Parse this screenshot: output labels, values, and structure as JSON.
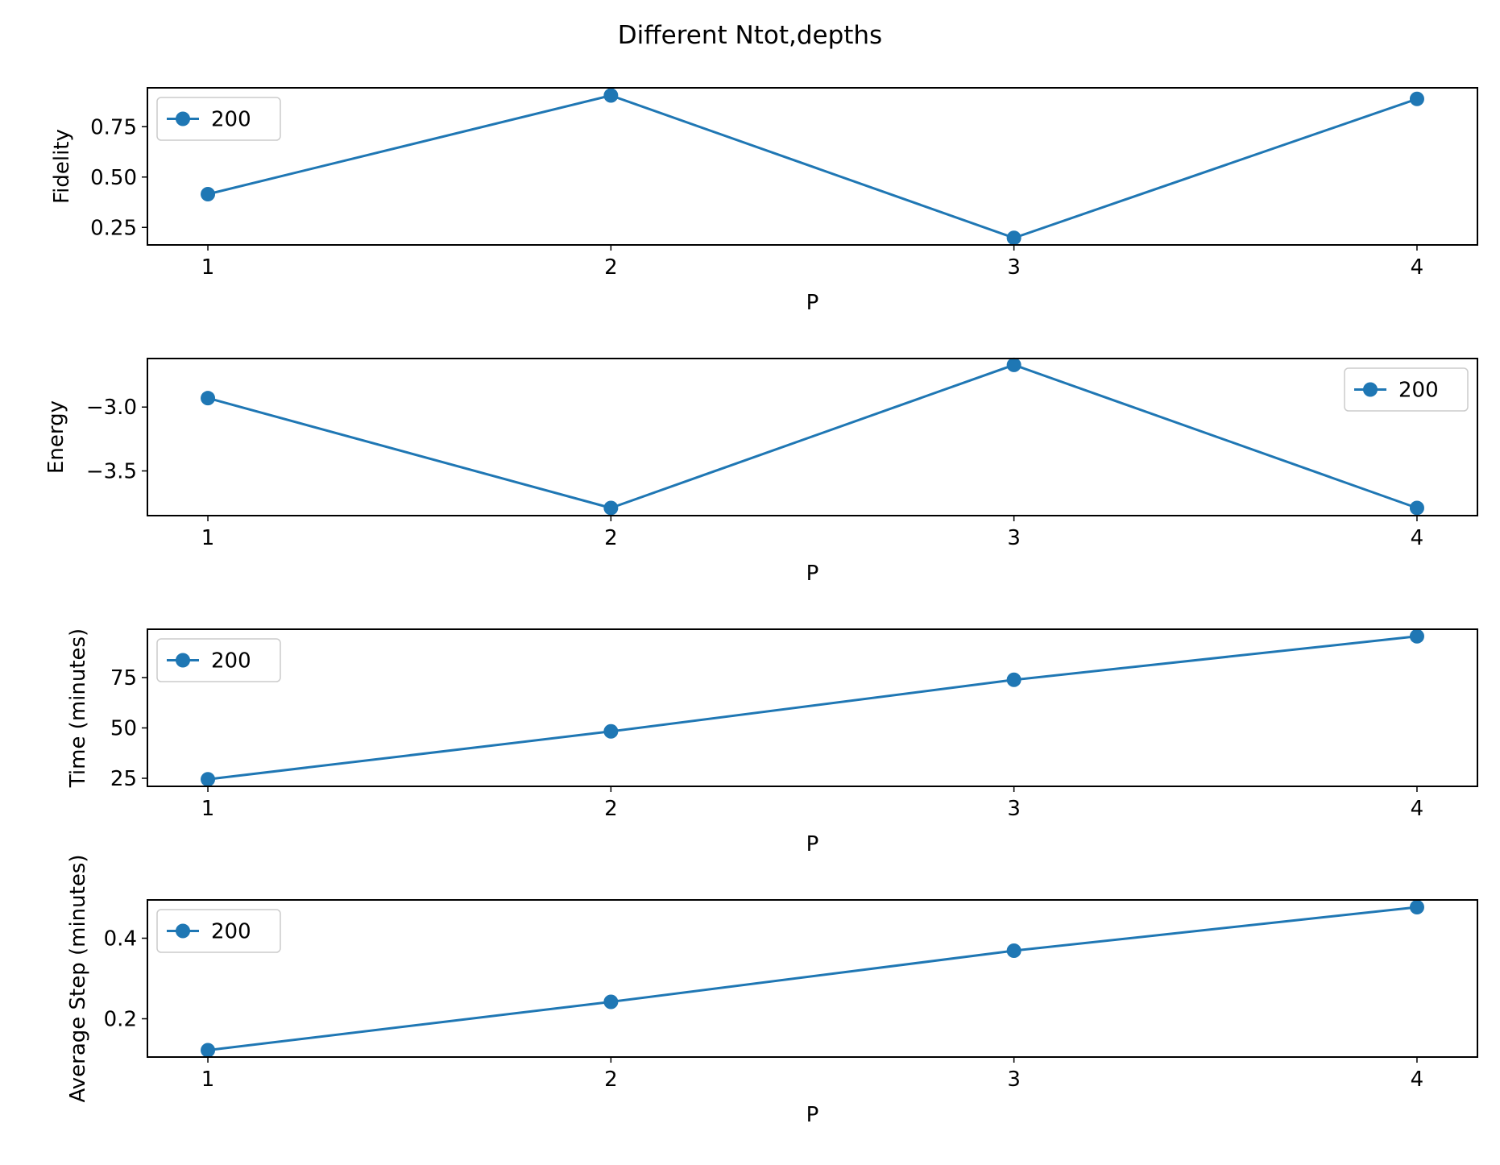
{
  "figure": {
    "title": "Different Ntot,depths"
  },
  "chart_data": [
    {
      "type": "line",
      "xlabel": "P",
      "ylabel": "Fidelity",
      "x": [
        1,
        2,
        3,
        4
      ],
      "xticks": [
        1,
        2,
        3,
        4
      ],
      "xlim": [
        0.85,
        4.15
      ],
      "yticks": [
        0.25,
        0.5,
        0.75
      ],
      "ytick_labels": [
        "0.25",
        "0.50",
        "0.75"
      ],
      "ylim": [
        0.163,
        0.943
      ],
      "series": [
        {
          "name": "200",
          "values": [
            0.415,
            0.905,
            0.198,
            0.888
          ],
          "color": "#1f77b4",
          "marker": "circle"
        }
      ],
      "legend": "upper left",
      "grid": false
    },
    {
      "type": "line",
      "xlabel": "P",
      "ylabel": "Energy",
      "x": [
        1,
        2,
        3,
        4
      ],
      "xticks": [
        1,
        2,
        3,
        4
      ],
      "xlim": [
        0.85,
        4.15
      ],
      "yticks": [
        -3.0,
        -3.5
      ],
      "ytick_labels": [
        "−3.0",
        "−3.5"
      ],
      "ylim": [
        -3.85,
        -2.62
      ],
      "series": [
        {
          "name": "200",
          "values": [
            -2.93,
            -3.79,
            -2.67,
            -3.79
          ],
          "color": "#1f77b4",
          "marker": "circle"
        }
      ],
      "legend": "upper right",
      "grid": false
    },
    {
      "type": "line",
      "xlabel": "P",
      "ylabel": "Time (minutes)",
      "x": [
        1,
        2,
        3,
        4
      ],
      "xticks": [
        1,
        2,
        3,
        4
      ],
      "xlim": [
        0.85,
        4.15
      ],
      "yticks": [
        25,
        50,
        75
      ],
      "ytick_labels": [
        "25",
        "50",
        "75"
      ],
      "ylim": [
        21.0,
        99.0
      ],
      "series": [
        {
          "name": "200",
          "values": [
            24.5,
            48.3,
            73.9,
            95.5
          ],
          "color": "#1f77b4",
          "marker": "circle"
        }
      ],
      "legend": "upper left",
      "grid": false
    },
    {
      "type": "line",
      "xlabel": "P",
      "ylabel": "Average Step (minutes)",
      "x": [
        1,
        2,
        3,
        4
      ],
      "xticks": [
        1,
        2,
        3,
        4
      ],
      "xlim": [
        0.85,
        4.15
      ],
      "yticks": [
        0.2,
        0.4
      ],
      "ytick_labels": [
        "0.2",
        "0.4"
      ],
      "ylim": [
        0.105,
        0.495
      ],
      "series": [
        {
          "name": "200",
          "values": [
            0.122,
            0.242,
            0.369,
            0.477
          ],
          "color": "#1f77b4",
          "marker": "circle"
        }
      ],
      "legend": "upper left",
      "grid": false
    }
  ]
}
